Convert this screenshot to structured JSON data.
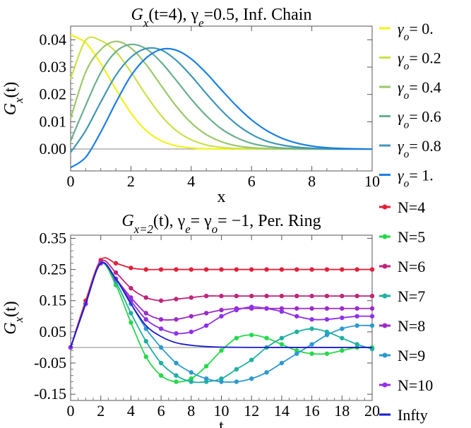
{
  "chart_data": [
    {
      "type": "line",
      "title": {
        "main": "G",
        "sub": "x",
        "rest": "(t=4), γ",
        "sub2": "e",
        "rest2": "=0.5, Inf. Chain"
      },
      "xlabel": "x",
      "ylabel": {
        "main": "G",
        "sub": "x",
        "rest": "(t)"
      },
      "xlim": [
        0,
        10
      ],
      "ylim": [
        -0.008,
        0.045
      ],
      "xticks": [
        0,
        2,
        4,
        6,
        8,
        10
      ],
      "xtick_labels": [
        "0",
        "2",
        "4",
        "6",
        "8",
        "10"
      ],
      "yticks": [
        0.0,
        0.01,
        0.02,
        0.03,
        0.04
      ],
      "ytick_labels": [
        "0.00",
        "0.01",
        "0.02",
        "0.03",
        "0.04"
      ],
      "grid": false,
      "legend_position": "right",
      "x": [
        0,
        0.5,
        1,
        1.5,
        2,
        2.5,
        3,
        3.5,
        4,
        4.5,
        5,
        5.5,
        6,
        6.5,
        7,
        7.5,
        8,
        8.5,
        9,
        9.5,
        10
      ],
      "series": [
        {
          "name": "γo= 0.",
          "label_main": "γ",
          "label_sub": "o",
          "label_rest": "= 0.",
          "color": "#f2f21a",
          "values": [
            0.0418,
            0.0389,
            0.0313,
            0.0219,
            0.0132,
            0.0068,
            0.0031,
            0.0012,
            0.0004,
            0.0001,
            0.0,
            0.0,
            0.0,
            0.0,
            0.0,
            0.0,
            0.0,
            0.0,
            0.0,
            0.0,
            0.0
          ]
        },
        {
          "name": "γo= 0.2",
          "label_main": "γ",
          "label_sub": "o",
          "label_rest": "= 0.2",
          "color": "#cde04a",
          "values": [
            0.0257,
            0.0398,
            0.0397,
            0.0356,
            0.0282,
            0.0198,
            0.0123,
            0.0068,
            0.0034,
            0.0015,
            0.0006,
            0.0002,
            0.0001,
            0.0,
            0.0,
            0.0,
            0.0,
            0.0,
            0.0,
            0.0,
            0.0
          ]
        },
        {
          "name": "γo= 0.4",
          "label_main": "γ",
          "label_sub": "o",
          "label_rest": "= 0.4",
          "color": "#9cc86a",
          "values": [
            0.0112,
            0.0282,
            0.0364,
            0.0394,
            0.037,
            0.031,
            0.0233,
            0.0157,
            0.0096,
            0.0053,
            0.0027,
            0.0012,
            0.0005,
            0.0002,
            0.0001,
            0.0,
            0.0,
            0.0,
            0.0,
            0.0,
            0.0
          ]
        },
        {
          "name": "γo= 0.6",
          "label_main": "γ",
          "label_sub": "o",
          "label_rest": "= 0.6",
          "color": "#6aaf8c",
          "values": [
            0.003,
            0.016,
            0.028,
            0.0356,
            0.0383,
            0.0367,
            0.0318,
            0.0252,
            0.0183,
            0.0122,
            0.0074,
            0.0042,
            0.0021,
            0.001,
            0.0004,
            0.0002,
            0.0001,
            0.0,
            0.0,
            0.0,
            0.0
          ]
        },
        {
          "name": "γo= 0.8",
          "label_main": "γ",
          "label_sub": "o",
          "label_rest": "= 0.8",
          "color": "#3f96b6",
          "values": [
            -0.0012,
            0.0068,
            0.0172,
            0.027,
            0.0336,
            0.0368,
            0.0363,
            0.0325,
            0.0268,
            0.0203,
            0.0142,
            0.0091,
            0.0054,
            0.0029,
            0.0015,
            0.0007,
            0.0003,
            0.0001,
            0.0,
            0.0,
            0.0
          ]
        },
        {
          "name": "γo= 1.",
          "label_main": "γ",
          "label_sub": "o",
          "label_rest": "= 1.",
          "color": "#1a7fe6",
          "values": [
            -0.0068,
            -0.003,
            0.0062,
            0.017,
            0.0268,
            0.0333,
            0.0365,
            0.0362,
            0.033,
            0.0278,
            0.0217,
            0.0158,
            0.0107,
            0.0068,
            0.004,
            0.0022,
            0.0011,
            0.0005,
            0.0002,
            0.0001,
            0.0
          ]
        }
      ]
    },
    {
      "type": "line",
      "title": {
        "main": "G",
        "sub": "x=2",
        "rest": "(t), γ",
        "sub2": "e",
        "rest2": "= γ",
        "sub3": "o",
        "rest3": "= −1, Per. Ring"
      },
      "xlabel": "t",
      "ylabel": {
        "main": "G",
        "sub": "x",
        "rest": "(t)"
      },
      "xlim": [
        0,
        20
      ],
      "ylim": [
        -0.17,
        0.36
      ],
      "xticks": [
        0,
        2,
        4,
        6,
        8,
        10,
        12,
        14,
        16,
        18,
        20
      ],
      "xtick_labels": [
        "0",
        "2",
        "4",
        "6",
        "8",
        "10",
        "12",
        "14",
        "16",
        "18",
        "20"
      ],
      "yticks": [
        -0.15,
        -0.05,
        0.05,
        0.15,
        0.25,
        0.35
      ],
      "ytick_labels": [
        "-0.15",
        "-0.05",
        "0.05",
        "0.15",
        "0.25",
        "0.35"
      ],
      "grid": false,
      "legend_position": "right",
      "x": [
        0,
        1,
        2,
        3,
        4,
        5,
        6,
        7,
        8,
        9,
        10,
        11,
        12,
        13,
        14,
        15,
        16,
        17,
        18,
        19,
        20
      ],
      "series": [
        {
          "name": "N=4",
          "color": "#e0203a",
          "markers": true,
          "values": [
            0.0,
            0.15,
            0.28,
            0.27,
            0.255,
            0.25,
            0.25,
            0.25,
            0.25,
            0.25,
            0.25,
            0.25,
            0.25,
            0.25,
            0.25,
            0.25,
            0.25,
            0.25,
            0.25,
            0.25,
            0.25
          ]
        },
        {
          "name": "N=5",
          "color": "#27d84a",
          "markers": true,
          "values": [
            0.0,
            0.14,
            0.27,
            0.2,
            0.08,
            -0.03,
            -0.09,
            -0.11,
            -0.1,
            -0.06,
            -0.01,
            0.03,
            0.04,
            0.03,
            0.01,
            -0.01,
            -0.02,
            -0.02,
            -0.01,
            0.0,
            0.0
          ]
        },
        {
          "name": "N=6",
          "color": "#c0247a",
          "markers": true,
          "values": [
            0.0,
            0.14,
            0.275,
            0.24,
            0.19,
            0.16,
            0.15,
            0.155,
            0.16,
            0.165,
            0.165,
            0.165,
            0.165,
            0.165,
            0.165,
            0.165,
            0.165,
            0.165,
            0.165,
            0.165,
            0.165
          ]
        },
        {
          "name": "N=7",
          "color": "#1fb0a0",
          "markers": true,
          "values": [
            0.0,
            0.14,
            0.27,
            0.21,
            0.11,
            0.02,
            -0.05,
            -0.09,
            -0.11,
            -0.11,
            -0.1,
            -0.07,
            -0.04,
            0.0,
            0.03,
            0.05,
            0.06,
            0.05,
            0.03,
            0.01,
            -0.005
          ]
        },
        {
          "name": "N=8",
          "color": "#9a2cc8",
          "markers": true,
          "values": [
            0.0,
            0.14,
            0.27,
            0.22,
            0.16,
            0.11,
            0.09,
            0.09,
            0.1,
            0.11,
            0.12,
            0.125,
            0.125,
            0.125,
            0.125,
            0.125,
            0.125,
            0.125,
            0.125,
            0.125,
            0.125
          ]
        },
        {
          "name": "N=9",
          "color": "#2c9ad0",
          "markers": true,
          "values": [
            0.0,
            0.14,
            0.27,
            0.22,
            0.14,
            0.06,
            0.0,
            -0.05,
            -0.08,
            -0.1,
            -0.11,
            -0.11,
            -0.1,
            -0.08,
            -0.05,
            -0.02,
            0.01,
            0.04,
            0.06,
            0.07,
            0.07
          ]
        },
        {
          "name": "N=10",
          "color": "#9030e8",
          "markers": true,
          "values": [
            0.0,
            0.14,
            0.27,
            0.22,
            0.15,
            0.09,
            0.06,
            0.045,
            0.05,
            0.07,
            0.1,
            0.12,
            0.13,
            0.125,
            0.115,
            0.1,
            0.09,
            0.09,
            0.095,
            0.1,
            0.1
          ]
        },
        {
          "name": "Infty",
          "color": "#1a1ad0",
          "markers": false,
          "values": [
            0.0,
            0.14,
            0.27,
            0.22,
            0.14,
            0.07,
            0.035,
            0.015,
            0.007,
            0.003,
            0.001,
            0.0005,
            0.0002,
            0.0001,
            0.0,
            0.0,
            0.0,
            0.0,
            0.0,
            0.0,
            0.0
          ]
        }
      ]
    }
  ]
}
